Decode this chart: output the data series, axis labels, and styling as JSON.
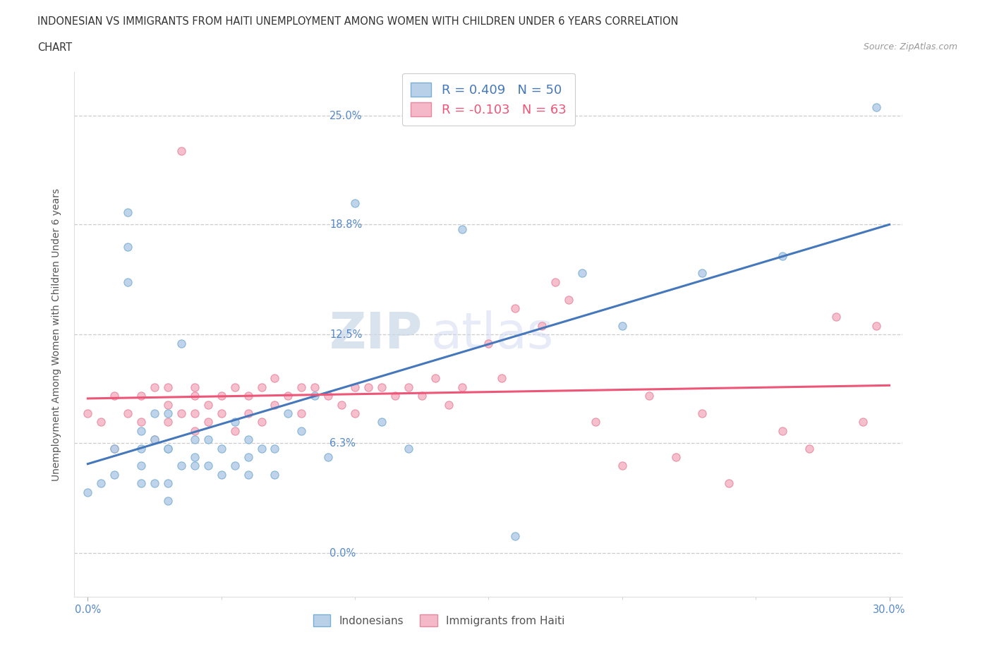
{
  "title_line1": "INDONESIAN VS IMMIGRANTS FROM HAITI UNEMPLOYMENT AMONG WOMEN WITH CHILDREN UNDER 6 YEARS CORRELATION",
  "title_line2": "CHART",
  "source": "Source: ZipAtlas.com",
  "ylabel": "Unemployment Among Women with Children Under 6 years",
  "xlim": [
    0.0,
    0.3
  ],
  "yticks": [
    0.0,
    0.063,
    0.125,
    0.188,
    0.25
  ],
  "ytick_labels": [
    "0.0%",
    "6.3%",
    "12.5%",
    "18.8%",
    "25.0%"
  ],
  "xtick_labels": [
    "0.0%",
    "30.0%"
  ],
  "indonesian_R": "0.409",
  "indonesian_N": "50",
  "haiti_R": "-0.103",
  "haiti_N": "63",
  "blue_fill": "#B8D0E8",
  "blue_edge": "#7AAFD4",
  "pink_fill": "#F5B8C8",
  "pink_edge": "#E888A0",
  "line_blue": "#4477BB",
  "line_pink": "#EE5577",
  "background_color": "#FFFFFF",
  "grid_color": "#CCCCCC",
  "title_color": "#333333",
  "axis_label_color": "#555555",
  "tick_label_color": "#5588CC",
  "indonesian_x": [
    0.0,
    0.005,
    0.01,
    0.01,
    0.015,
    0.015,
    0.015,
    0.02,
    0.02,
    0.02,
    0.02,
    0.025,
    0.025,
    0.025,
    0.03,
    0.03,
    0.03,
    0.03,
    0.03,
    0.035,
    0.035,
    0.04,
    0.04,
    0.04,
    0.045,
    0.045,
    0.05,
    0.05,
    0.055,
    0.055,
    0.06,
    0.06,
    0.06,
    0.065,
    0.07,
    0.07,
    0.075,
    0.08,
    0.085,
    0.09,
    0.1,
    0.11,
    0.12,
    0.14,
    0.16,
    0.185,
    0.2,
    0.23,
    0.26,
    0.295
  ],
  "indonesian_y": [
    0.035,
    0.04,
    0.06,
    0.045,
    0.155,
    0.175,
    0.195,
    0.06,
    0.04,
    0.05,
    0.07,
    0.065,
    0.08,
    0.04,
    0.06,
    0.03,
    0.04,
    0.06,
    0.08,
    0.05,
    0.12,
    0.055,
    0.065,
    0.05,
    0.065,
    0.05,
    0.06,
    0.045,
    0.075,
    0.05,
    0.065,
    0.055,
    0.045,
    0.06,
    0.06,
    0.045,
    0.08,
    0.07,
    0.09,
    0.055,
    0.2,
    0.075,
    0.06,
    0.185,
    0.01,
    0.16,
    0.13,
    0.16,
    0.17,
    0.255
  ],
  "haiti_x": [
    0.0,
    0.005,
    0.01,
    0.01,
    0.015,
    0.02,
    0.02,
    0.025,
    0.025,
    0.03,
    0.03,
    0.03,
    0.035,
    0.035,
    0.04,
    0.04,
    0.04,
    0.04,
    0.045,
    0.045,
    0.05,
    0.05,
    0.055,
    0.055,
    0.06,
    0.06,
    0.065,
    0.065,
    0.07,
    0.07,
    0.075,
    0.08,
    0.08,
    0.085,
    0.09,
    0.095,
    0.1,
    0.1,
    0.105,
    0.11,
    0.115,
    0.12,
    0.125,
    0.13,
    0.135,
    0.14,
    0.15,
    0.155,
    0.16,
    0.17,
    0.175,
    0.18,
    0.19,
    0.2,
    0.21,
    0.22,
    0.23,
    0.24,
    0.26,
    0.27,
    0.28,
    0.29,
    0.295
  ],
  "haiti_y": [
    0.08,
    0.075,
    0.09,
    0.06,
    0.08,
    0.075,
    0.09,
    0.095,
    0.065,
    0.095,
    0.075,
    0.085,
    0.23,
    0.08,
    0.095,
    0.08,
    0.07,
    0.09,
    0.085,
    0.075,
    0.09,
    0.08,
    0.095,
    0.07,
    0.09,
    0.08,
    0.095,
    0.075,
    0.1,
    0.085,
    0.09,
    0.095,
    0.08,
    0.095,
    0.09,
    0.085,
    0.095,
    0.08,
    0.095,
    0.095,
    0.09,
    0.095,
    0.09,
    0.1,
    0.085,
    0.095,
    0.12,
    0.1,
    0.14,
    0.13,
    0.155,
    0.145,
    0.075,
    0.05,
    0.09,
    0.055,
    0.08,
    0.04,
    0.07,
    0.06,
    0.135,
    0.075,
    0.13
  ],
  "watermark_zip": "ZIP",
  "watermark_atlas": "atlas",
  "legend_bottom_labels": [
    "Indonesians",
    "Immigrants from Haiti"
  ]
}
